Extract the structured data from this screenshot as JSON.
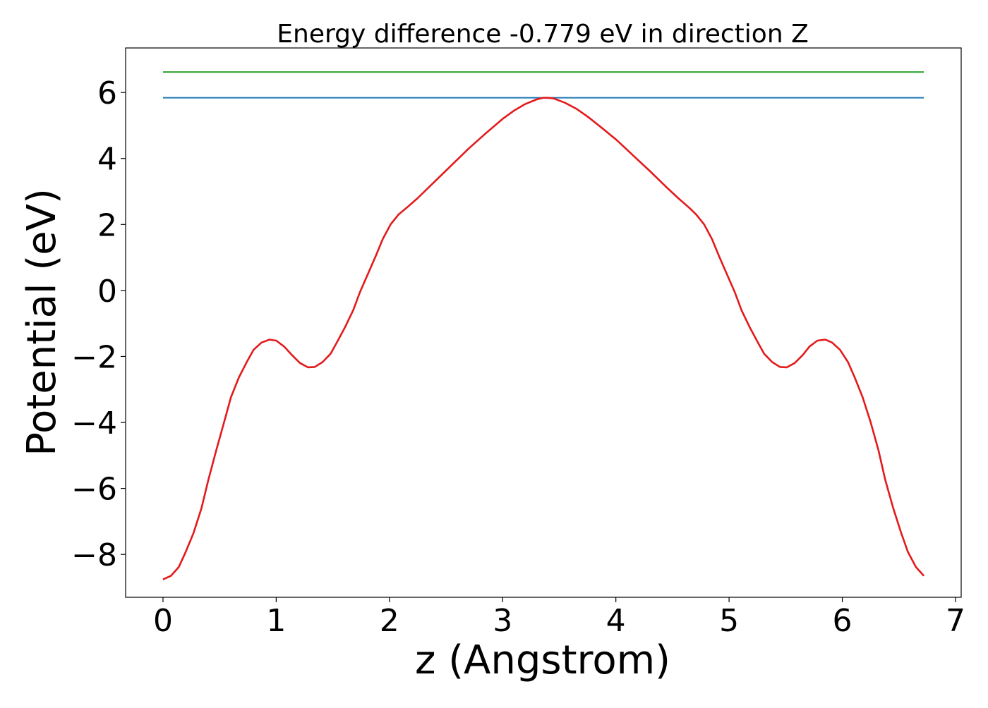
{
  "chart_data": {
    "type": "line",
    "title": "Energy difference -0.779 eV in direction Z",
    "xlabel": "z (Angstrom)",
    "ylabel": "Potential (eV)",
    "xlim": [
      -0.33,
      7.05
    ],
    "ylim": [
      -9.3,
      7.35
    ],
    "xticks": [
      0,
      1,
      2,
      3,
      4,
      5,
      6,
      7
    ],
    "yticks": [
      -8,
      -6,
      -4,
      -2,
      0,
      2,
      4,
      6
    ],
    "xtick_labels": [
      "0",
      "1",
      "2",
      "3",
      "4",
      "5",
      "6",
      "7"
    ],
    "ytick_labels": [
      "−8",
      "−6",
      "−4",
      "−2",
      "0",
      "2",
      "4",
      "6"
    ],
    "grid": false,
    "legend": "none",
    "series": [
      {
        "color": "#2ca02c",
        "style": "horizontal",
        "x": [
          0.0,
          6.72
        ],
        "y": [
          6.62,
          6.62
        ]
      },
      {
        "color": "#1f77b4",
        "style": "horizontal",
        "x": [
          0.0,
          6.72
        ],
        "y": [
          5.84,
          5.84
        ]
      },
      {
        "color": "#e31a1c",
        "style": "curve",
        "x": [
          0.0,
          0.07,
          0.14,
          0.2,
          0.27,
          0.34,
          0.4,
          0.47,
          0.54,
          0.6,
          0.67,
          0.74,
          0.8,
          0.87,
          0.94,
          1.0,
          1.07,
          1.14,
          1.21,
          1.28,
          1.34,
          1.41,
          1.48,
          1.54,
          1.61,
          1.68,
          1.74,
          1.81,
          1.88,
          1.94,
          2.01,
          2.08,
          2.15,
          2.25,
          2.4,
          2.55,
          2.7,
          2.85,
          3.0,
          3.1,
          3.2,
          3.3,
          3.36,
          3.4,
          3.45,
          3.55,
          3.65,
          3.75,
          3.85,
          4.0,
          4.15,
          4.3,
          4.45,
          4.55,
          4.65,
          4.71,
          4.78,
          4.85,
          4.91,
          4.98,
          5.05,
          5.11,
          5.18,
          5.25,
          5.31,
          5.38,
          5.45,
          5.51,
          5.58,
          5.65,
          5.71,
          5.78,
          5.85,
          5.91,
          5.98,
          6.05,
          6.11,
          6.18,
          6.25,
          6.32,
          6.38,
          6.45,
          6.52,
          6.58,
          6.65,
          6.72
        ],
        "y": [
          -8.76,
          -8.65,
          -8.38,
          -7.93,
          -7.35,
          -6.6,
          -5.75,
          -4.85,
          -3.99,
          -3.24,
          -2.64,
          -2.17,
          -1.8,
          -1.58,
          -1.49,
          -1.52,
          -1.7,
          -1.96,
          -2.2,
          -2.33,
          -2.32,
          -2.17,
          -1.92,
          -1.55,
          -1.1,
          -0.6,
          -0.05,
          0.5,
          1.05,
          1.55,
          2.0,
          2.3,
          2.5,
          2.8,
          3.3,
          3.8,
          4.3,
          4.76,
          5.2,
          5.45,
          5.65,
          5.79,
          5.84,
          5.84,
          5.82,
          5.69,
          5.51,
          5.27,
          5.0,
          4.58,
          4.1,
          3.62,
          3.12,
          2.8,
          2.5,
          2.3,
          2.0,
          1.55,
          1.05,
          0.5,
          -0.05,
          -0.6,
          -1.1,
          -1.55,
          -1.92,
          -2.17,
          -2.32,
          -2.33,
          -2.2,
          -1.96,
          -1.7,
          -1.52,
          -1.49,
          -1.58,
          -1.8,
          -2.17,
          -2.64,
          -3.24,
          -3.99,
          -4.85,
          -5.75,
          -6.6,
          -7.35,
          -7.93,
          -8.38,
          -8.65
        ]
      }
    ]
  }
}
